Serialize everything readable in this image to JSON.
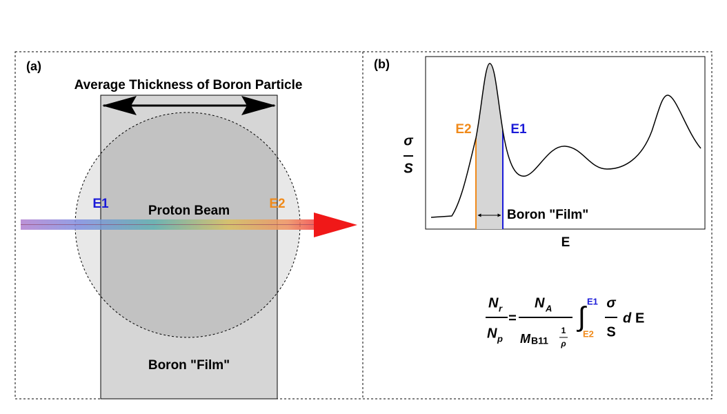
{
  "panel_a": {
    "label": "(a)",
    "title": "Average Thickness of Boron Particle",
    "e1": "E1",
    "e2": "E2",
    "beam": "Proton Beam",
    "film": "Boron \"Film\""
  },
  "panel_b": {
    "label": "(b)",
    "y_label": {
      "numerator": "σ",
      "denominator": "S"
    },
    "x_label": "E",
    "e1": "E1",
    "e2": "E2",
    "film": "Boron \"Film\""
  },
  "formula": {
    "lhs": {
      "num": {
        "base": "N",
        "sub": "r"
      },
      "den": {
        "base": "N",
        "sub": "p"
      }
    },
    "equals": "=",
    "rhs": {
      "num": {
        "base": "N",
        "sub": "A"
      },
      "den": {
        "base": "M",
        "sub": "B11",
        "frac_num": "1",
        "frac_den": "ρ"
      }
    },
    "integral": "∫",
    "upper": "E1",
    "lower": "E2",
    "integrand": {
      "num": "σ",
      "den": "S"
    },
    "differential": "d",
    "variable": "E"
  }
}
